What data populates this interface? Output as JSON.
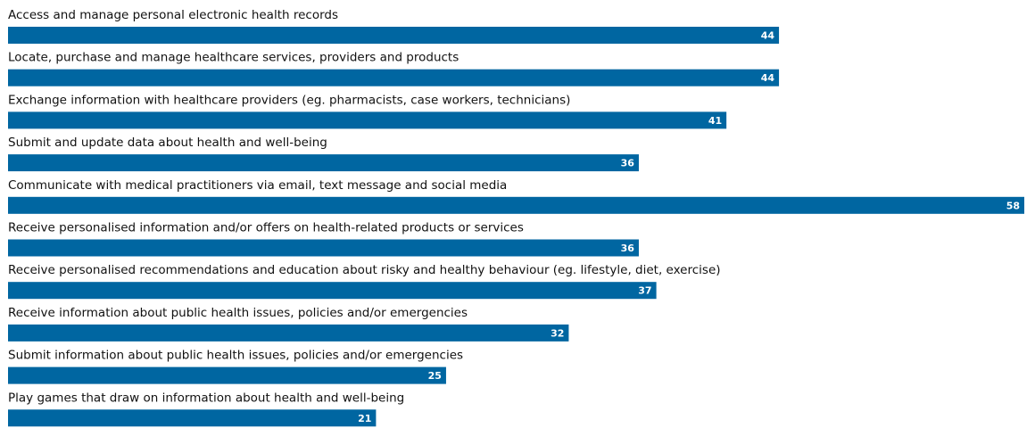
{
  "chart_data": {
    "type": "bar",
    "categories": [
      "Access and manage personal electronic health records",
      "Locate, purchase and manage healthcare services, providers and products",
      "Exchange information with healthcare providers (eg. pharmacists, case workers, technicians)",
      "Submit and update data about health and well-being",
      "Communicate with medical practitioners via email, text message and social media",
      "Receive personalised information and/or offers on health-related products or services",
      "Receive personalised recommendations and education about risky and healthy behaviour (eg. lifestyle, diet, exercise)",
      "Receive information about public health issues, policies and/or emergencies",
      "Submit information about public health issues, policies and/or emergencies",
      "Play games that draw on information about health and well-being"
    ],
    "values": [
      44,
      44,
      41,
      36,
      58,
      36,
      37,
      32,
      25,
      21
    ],
    "color": "#0066a1"
  }
}
